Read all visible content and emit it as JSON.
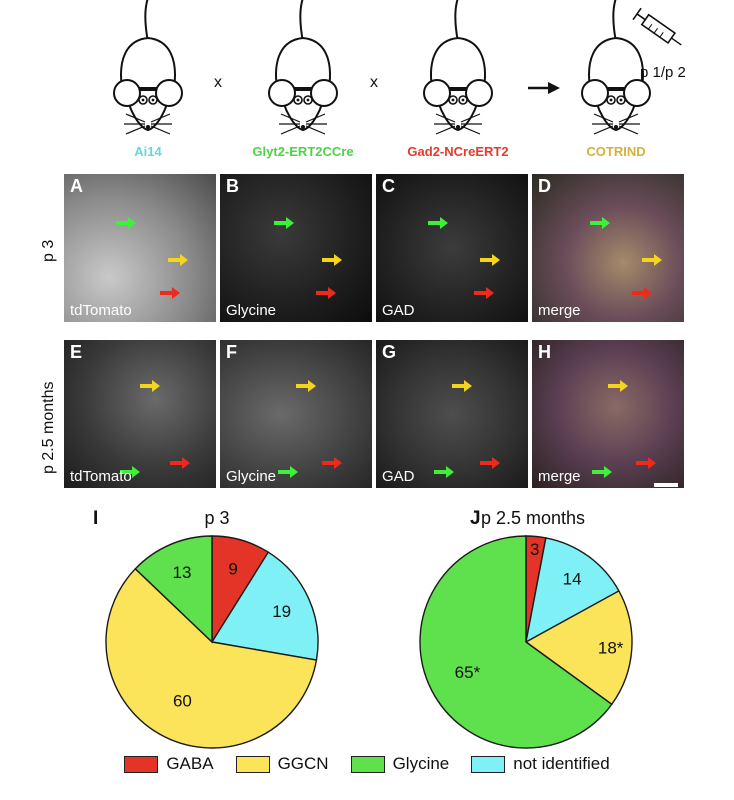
{
  "breeding": {
    "mice": [
      {
        "label": "Ai14",
        "color": "#5ed8e8"
      },
      {
        "label": "Glyt2-ERT2CCre",
        "color": "#4fd24a"
      },
      {
        "label": "Gad2-NCreERT2",
        "color": "#e33a2a"
      },
      {
        "label": "COTRIND",
        "color": "#d4b23a"
      }
    ],
    "operators": [
      "x",
      "x"
    ],
    "injection_label": "p 1/p 2"
  },
  "micrographs": {
    "rows": [
      {
        "label": "p 3",
        "panels": [
          {
            "letter": "A",
            "stain": "tdTomato"
          },
          {
            "letter": "B",
            "stain": "Glycine"
          },
          {
            "letter": "C",
            "stain": "GAD"
          },
          {
            "letter": "D",
            "stain": "merge"
          }
        ]
      },
      {
        "label": "p 2.5 months",
        "panels": [
          {
            "letter": "E",
            "stain": "tdTomato"
          },
          {
            "letter": "F",
            "stain": "Glycine"
          },
          {
            "letter": "G",
            "stain": "GAD"
          },
          {
            "letter": "H",
            "stain": "merge"
          }
        ]
      }
    ]
  },
  "chart_data": [
    {
      "type": "pie",
      "panel": "I",
      "title": "p 3",
      "categories": [
        "GABA",
        "not identified",
        "GGCN",
        "Glycine"
      ],
      "values": [
        9,
        19,
        60,
        13
      ],
      "value_labels": [
        "9",
        "19",
        "60",
        "13"
      ],
      "colors": [
        "#e33427",
        "#7ff0f6",
        "#fbe45a",
        "#5fe04d"
      ]
    },
    {
      "type": "pie",
      "panel": "J",
      "title": "p 2.5 months",
      "categories": [
        "GABA",
        "not identified",
        "GGCN",
        "Glycine"
      ],
      "values": [
        3,
        14,
        18,
        65
      ],
      "value_labels": [
        "3",
        "14",
        "18*",
        "65*"
      ],
      "colors": [
        "#e33427",
        "#7ff0f6",
        "#fbe45a",
        "#5fe04d"
      ]
    }
  ],
  "legend": [
    {
      "label": "GABA",
      "color": "#e33427"
    },
    {
      "label": "GGCN",
      "color": "#fbe45a"
    },
    {
      "label": "Glycine",
      "color": "#5fe04d"
    },
    {
      "label": "not identified",
      "color": "#7ff0f6"
    }
  ]
}
